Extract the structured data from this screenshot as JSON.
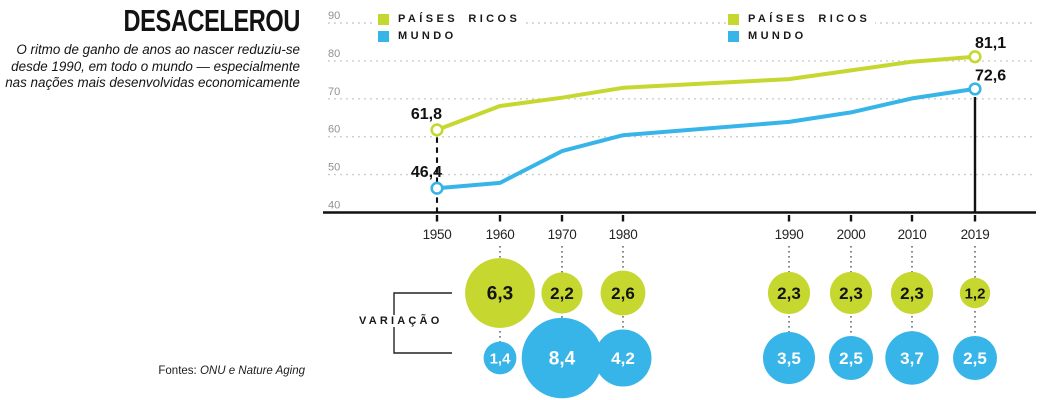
{
  "header": {
    "title": "DESACELEROU",
    "subtitle_lines": [
      "O ritmo de ganho de anos ao nascer reduziu-se",
      "desde 1990, em todo o mundo — especialmente",
      "nas nações mais desenvolvidas economicamente"
    ]
  },
  "legend": {
    "items": [
      {
        "label": "PAÍSES RICOS",
        "color": "#c6d730"
      },
      {
        "label": "MUNDO",
        "color": "#38b5e8"
      }
    ]
  },
  "source": {
    "prefix": "Fontes: ",
    "text": "ONU e Nature Aging"
  },
  "colors": {
    "rich": "#c6d730",
    "world": "#38b5e8",
    "axis": "#111111",
    "gridline": "#c8c8c8",
    "ytick_label": "#919191",
    "xtick_label": "#242424"
  },
  "chart_data": {
    "type": "line",
    "title": "DESACELEROU",
    "x": [
      1950,
      1960,
      1970,
      1980,
      1990,
      2000,
      2010,
      2019
    ],
    "x_tick_labels": [
      "1950",
      "1960",
      "1970",
      "1980",
      "1990",
      "2000",
      "2010",
      "2019"
    ],
    "ylim": [
      40,
      90
    ],
    "yticks": [
      40,
      50,
      60,
      70,
      80,
      90
    ],
    "grid": "dotted-horizontal",
    "legend_position": "top (repeated twice)",
    "series": [
      {
        "name": "PAÍSES RICOS",
        "color": "#c6d730",
        "values": [
          61.8,
          68.1,
          70.3,
          72.9,
          75.2,
          77.5,
          79.8,
          81.1
        ],
        "start_label": "61,8",
        "end_label": "81,1"
      },
      {
        "name": "MUNDO",
        "color": "#38b5e8",
        "values": [
          46.4,
          47.8,
          56.2,
          60.4,
          63.9,
          66.4,
          70.1,
          72.6
        ],
        "start_label": "46,4",
        "end_label": "72,6"
      }
    ],
    "markers": {
      "start_year_line": "dashed",
      "end_year_line": "solid"
    },
    "bubbles": {
      "label": "VARIAÇÃO",
      "note": "decade gain in years, bubble area proportional to value",
      "x": [
        1960,
        1970,
        1980,
        1990,
        2000,
        2010,
        2019
      ],
      "series": [
        {
          "name": "PAÍSES RICOS",
          "color": "#c6d730",
          "text_color": "#141414",
          "values": [
            6.3,
            2.2,
            2.6,
            2.3,
            2.3,
            2.3,
            1.2
          ],
          "labels": [
            "6,3",
            "2,2",
            "2,6",
            "2,3",
            "2,3",
            "2,3",
            "1,2"
          ]
        },
        {
          "name": "MUNDO",
          "color": "#38b5e8",
          "text_color": "#ffffff",
          "values": [
            1.4,
            8.4,
            4.2,
            3.5,
            2.5,
            3.7,
            2.5
          ],
          "labels": [
            "1,4",
            "8,4",
            "4,2",
            "3,5",
            "2,5",
            "3,7",
            "2,5"
          ]
        }
      ]
    }
  }
}
